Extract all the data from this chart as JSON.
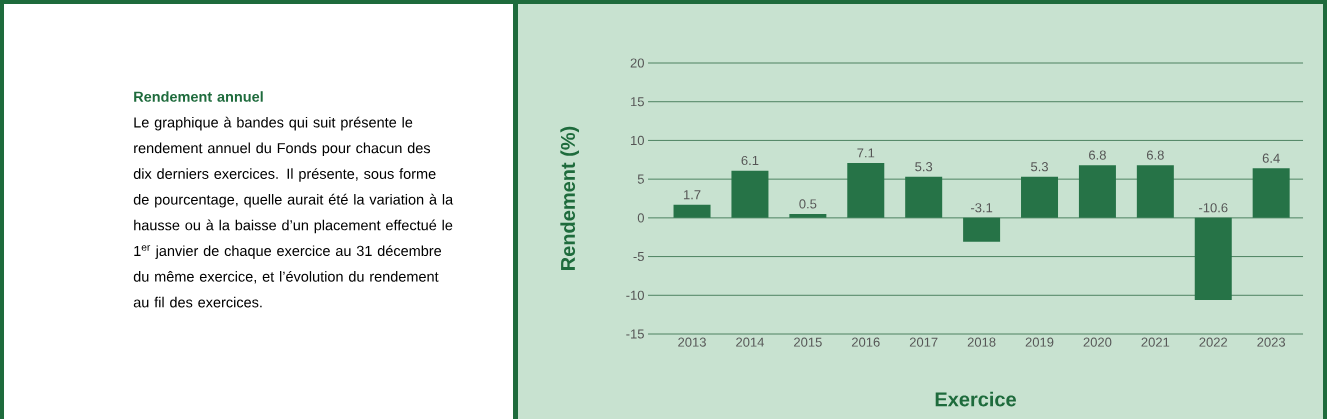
{
  "chart_data": {
    "type": "bar",
    "title": "Rendement annuel",
    "subtitle": "Le graphique à bandes qui suit présente le rendement annuel du Fonds pour chacun des dix derniers exercices. Il présente, sous forme de pourcentage, quelle aurait été la variation à la hausse ou à la baisse d’un placement effectué le 1$^{er}$ janvier de chaque exercice au 31 décembre du même exercice, et l’évolution du rendement au fil des exercices.",
    "xlabel": "Exercice",
    "ylabel": "Rendement (%)",
    "categories": [
      "2013",
      "2014",
      "2015",
      "2016",
      "2017",
      "2018",
      "2019",
      "2020",
      "2021",
      "2022",
      "2023"
    ],
    "values": [
      1.7,
      6.1,
      0.5,
      7.1,
      5.3,
      -3.1,
      5.3,
      6.8,
      6.8,
      -10.6,
      6.4
    ],
    "color": "#267347",
    "ylim": [
      -15,
      20
    ],
    "yticks": [
      -15,
      -10,
      -5,
      0,
      5,
      10,
      15,
      20
    ],
    "grid": "y",
    "data_labels": true
  }
}
